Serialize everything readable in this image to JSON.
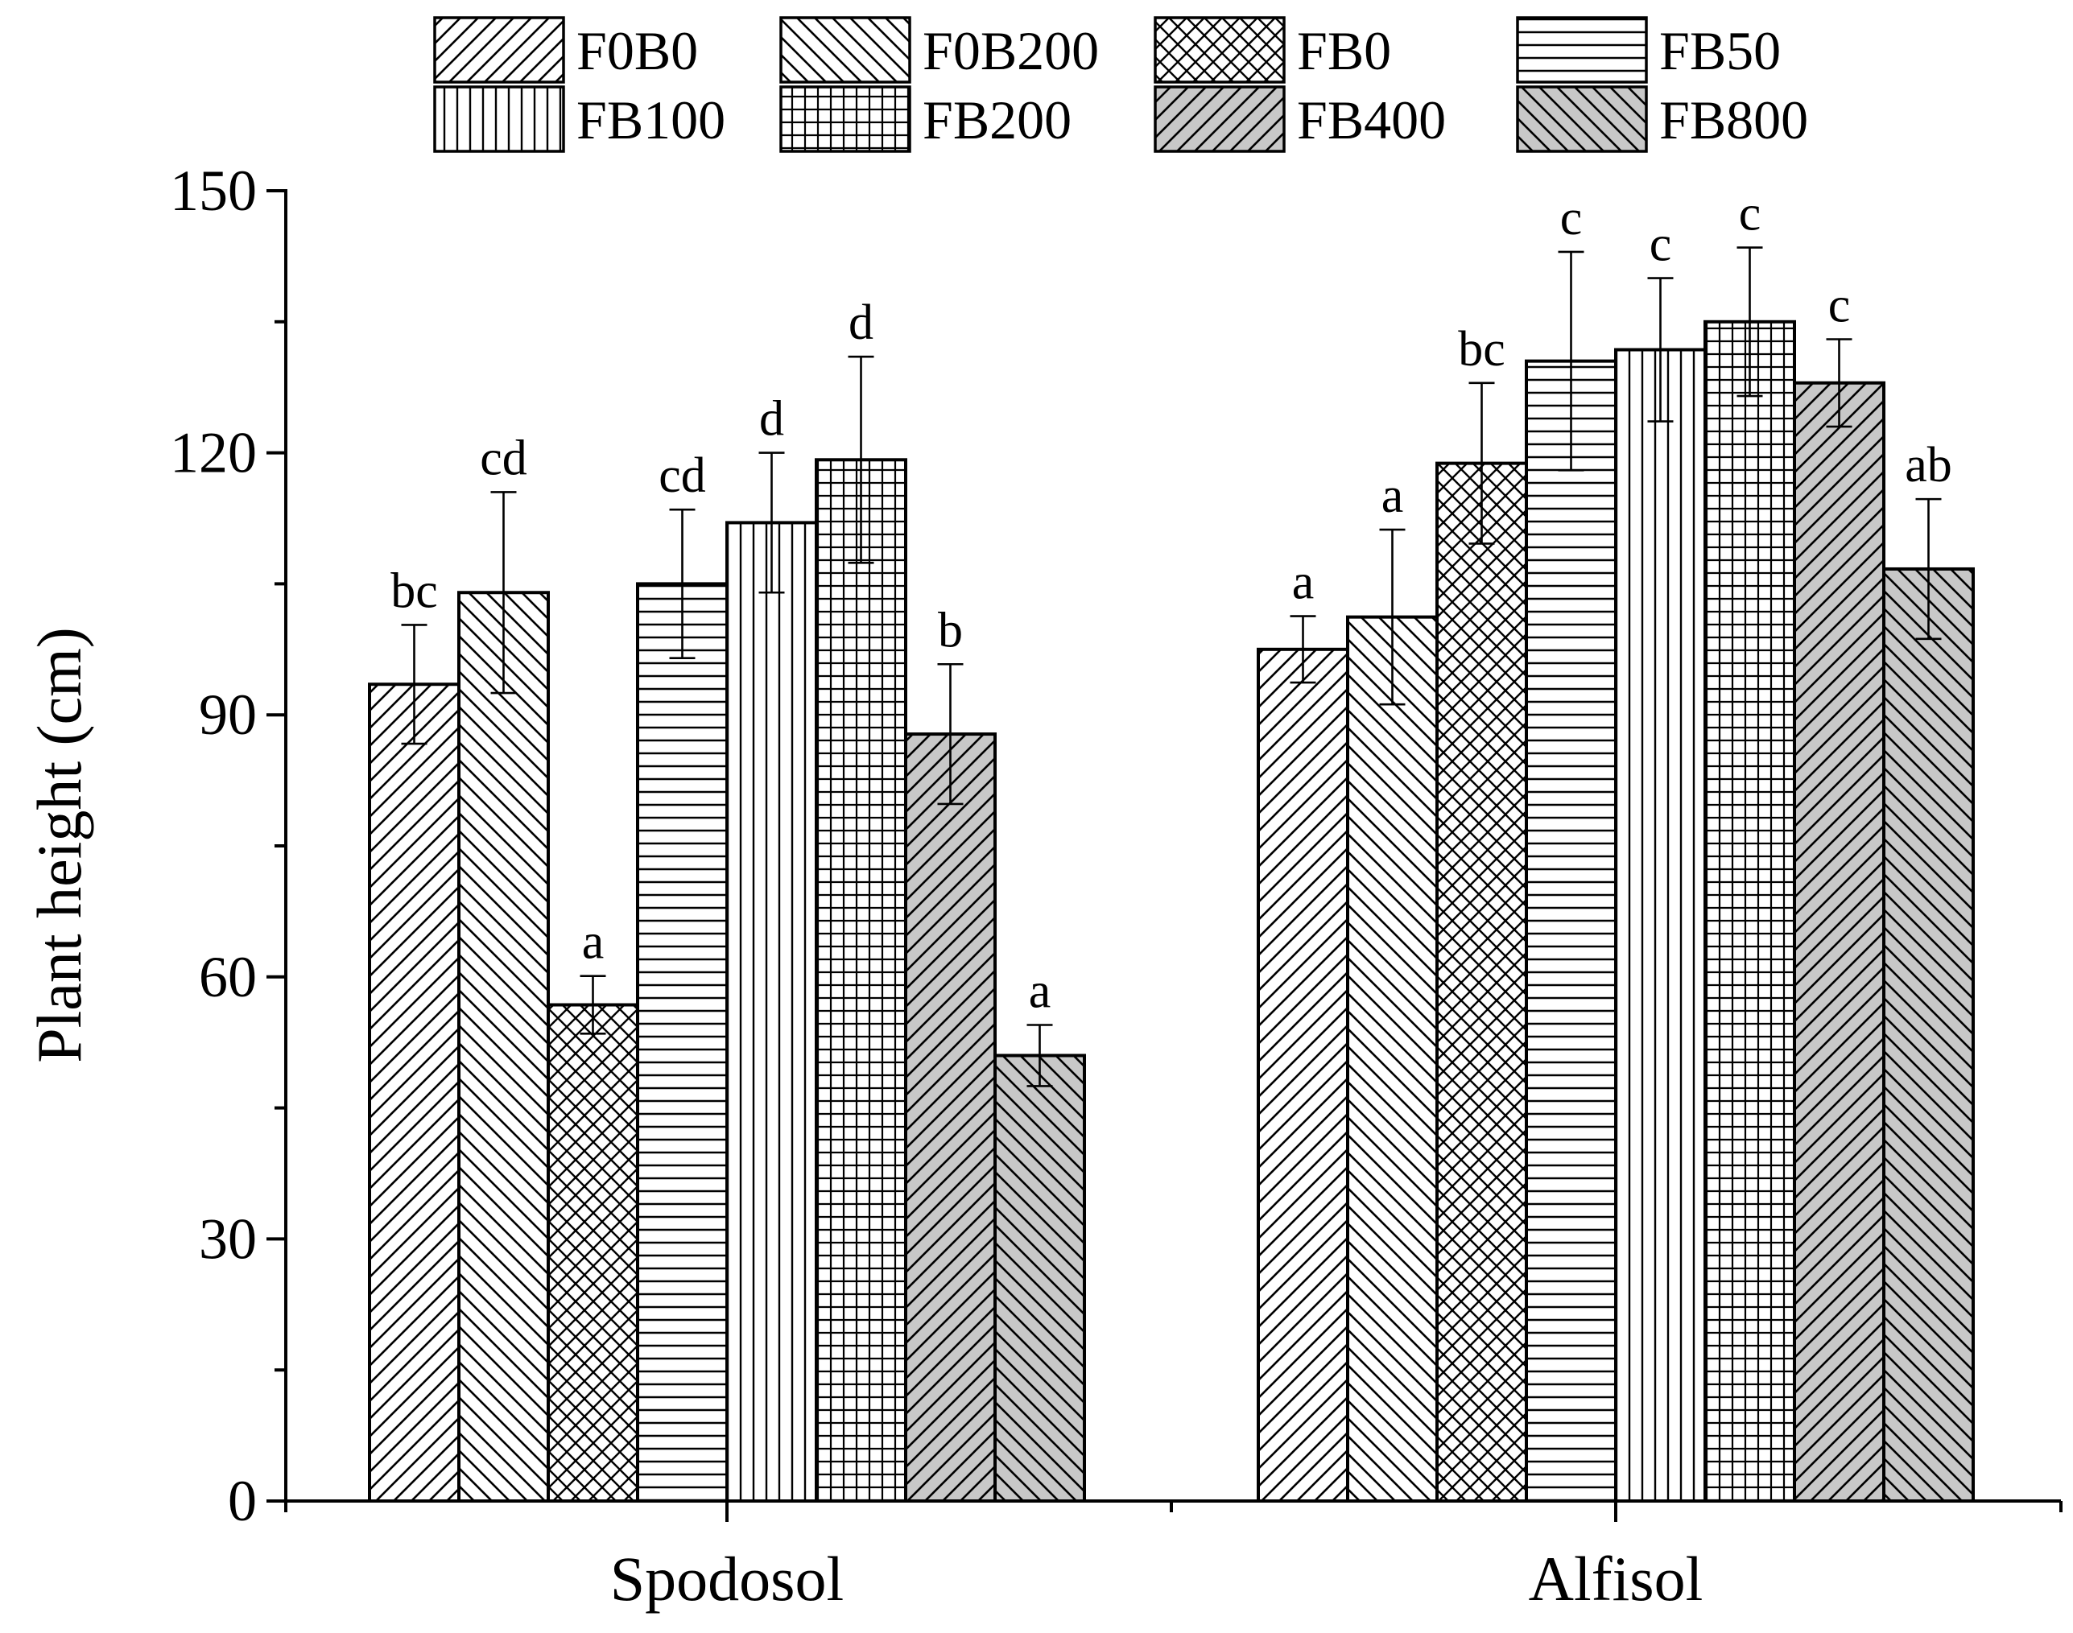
{
  "chart_data": {
    "type": "bar",
    "title": "",
    "xlabel": "",
    "ylabel": "Plant height (cm)",
    "ylim": [
      0,
      150
    ],
    "yticks": [
      "0",
      "30",
      "60",
      "90",
      "120",
      "150"
    ],
    "grid": false,
    "legend_position": "top",
    "categories": [
      "Spodosol",
      "Alfisol"
    ],
    "series": [
      {
        "name": "F0B0",
        "pattern": "diag-up",
        "fill": "#ffffff",
        "values": [
          93.5,
          97.5
        ],
        "errors": [
          6.8,
          3.8
        ],
        "letters": [
          "bc",
          "a"
        ]
      },
      {
        "name": "F0B200",
        "pattern": "diag-down",
        "fill": "#ffffff",
        "values": [
          104.0,
          101.2
        ],
        "errors": [
          11.5,
          10.0
        ],
        "letters": [
          "cd",
          "a"
        ]
      },
      {
        "name": "FB0",
        "pattern": "cross",
        "fill": "#ffffff",
        "values": [
          56.8,
          118.8
        ],
        "errors": [
          3.3,
          9.2
        ],
        "letters": [
          "a",
          "bc"
        ]
      },
      {
        "name": "FB50",
        "pattern": "horizontal",
        "fill": "#ffffff",
        "values": [
          105.0,
          130.5
        ],
        "errors": [
          8.5,
          12.5
        ],
        "letters": [
          "cd",
          "c"
        ]
      },
      {
        "name": "FB100",
        "pattern": "vertical",
        "fill": "#ffffff",
        "values": [
          112.0,
          131.8
        ],
        "errors": [
          8.0,
          8.2
        ],
        "letters": [
          "d",
          "c"
        ]
      },
      {
        "name": "FB200",
        "pattern": "grid",
        "fill": "#ffffff",
        "values": [
          119.2,
          135.0
        ],
        "errors": [
          11.8,
          8.5
        ],
        "letters": [
          "d",
          "c"
        ]
      },
      {
        "name": "FB400",
        "pattern": "diag-up",
        "fill": "#c8c8c8",
        "values": [
          87.8,
          128.0
        ],
        "errors": [
          8.0,
          5.0
        ],
        "letters": [
          "b",
          "c"
        ]
      },
      {
        "name": "FB800",
        "pattern": "diag-down",
        "fill": "#c8c8c8",
        "values": [
          51.0,
          106.7
        ],
        "errors": [
          3.5,
          8.0
        ],
        "letters": [
          "a",
          "ab"
        ]
      }
    ]
  }
}
